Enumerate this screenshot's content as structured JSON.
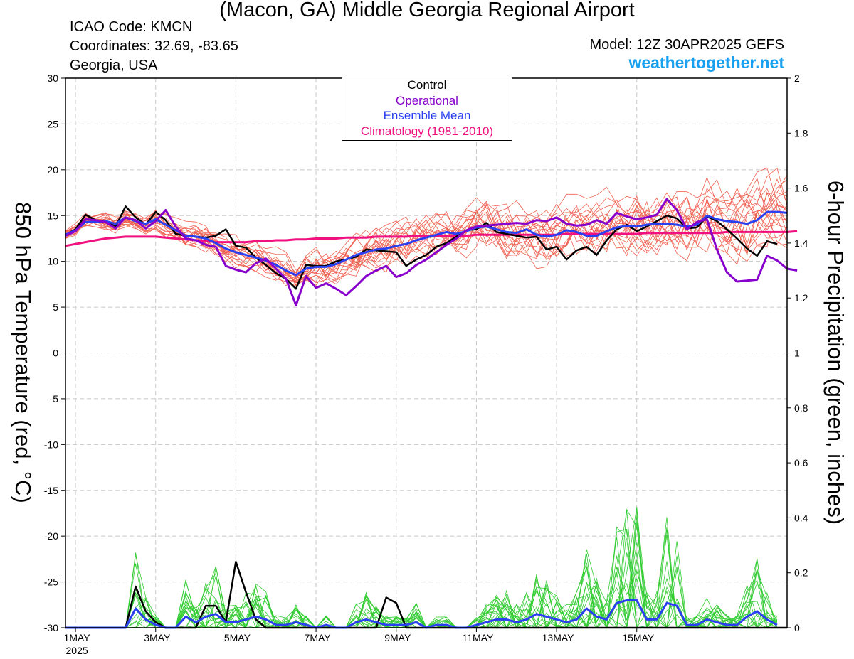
{
  "header": {
    "title": "(Macon, GA) Middle Georgia Regional Airport",
    "icao": "ICAO Code: KMCN",
    "coords": "Coordinates: 32.69, -83.65",
    "region": "Georgia, USA",
    "model": "Model: 12Z 30APR2025 GEFS",
    "brand": "weathertogether.net"
  },
  "legend": {
    "control": "Control",
    "operational": "Operational",
    "mean": "Ensemble Mean",
    "clim": "Climatology (1981-2010)"
  },
  "colors": {
    "control": "#000000",
    "operational": "#8800cc",
    "mean": "#2a3ff0",
    "clim": "#f01080",
    "member_temp": "#f06050",
    "member_precip": "#33cc33",
    "grid": "#c8c8c8",
    "brand": "#1aa0f0"
  },
  "chart_data": {
    "type": "line",
    "ylabel": "850 hPa Temperature (red, °C)",
    "y2label": "6-hour Precipitation (green, inches)",
    "ylim": [
      -30,
      30
    ],
    "y2lim": [
      0,
      2
    ],
    "yticks": [
      "30",
      "25",
      "20",
      "15",
      "10",
      "5",
      "0",
      "-5",
      "-10",
      "-15",
      "-20",
      "-25",
      "-30"
    ],
    "y2ticks": [
      "2",
      "1.8",
      "1.6",
      "1.4",
      "1.2",
      "1",
      "0.8",
      "0.6",
      "0.4",
      "0.2",
      "0"
    ],
    "x_start": "2025-04-30 18Z",
    "x_step_hours": 6,
    "xticks": [
      {
        "label": "1MAY",
        "sub": "2025",
        "t": 6
      },
      {
        "label": "3MAY",
        "sub": "",
        "t": 54
      },
      {
        "label": "5MAY",
        "sub": "",
        "t": 102
      },
      {
        "label": "7MAY",
        "sub": "",
        "t": 150
      },
      {
        "label": "9MAY",
        "sub": "",
        "t": 198
      },
      {
        "label": "11MAY",
        "sub": "",
        "t": 246
      },
      {
        "label": "13MAY",
        "sub": "",
        "t": 294
      },
      {
        "label": "15MAY",
        "sub": "",
        "t": 342
      }
    ],
    "grid": true,
    "temperature": {
      "control": [
        12.9,
        13.5,
        15.1,
        14.5,
        14.4,
        13.8,
        16.0,
        14.8,
        14.0,
        15.4,
        14.5,
        13.0,
        12.8,
        12.7,
        12.6,
        12.8,
        13.5,
        11.7,
        11.5,
        10.4,
        9.6,
        8.7,
        8.1,
        7.0,
        9.6,
        9.5,
        9.5,
        10.0,
        10.2,
        10.5,
        11.3,
        11.2,
        11.1,
        11.0,
        9.5,
        10.2,
        10.7,
        11.6,
        12.0,
        12.7,
        13.4,
        13.5,
        14.2,
        13.2,
        13.0,
        12.8,
        12.6,
        12.7,
        11.3,
        11.6,
        10.2,
        11.2,
        11.6,
        10.7,
        12.3,
        13.5,
        14.0,
        13.3,
        13.8,
        14.4,
        15.0,
        14.7,
        13.6,
        13.7,
        14.9,
        14.4,
        13.5,
        12.5,
        11.4,
        10.6,
        12.2,
        11.9
      ],
      "operational": [
        12.8,
        13.3,
        14.6,
        14.5,
        14.3,
        13.6,
        14.8,
        14.5,
        13.6,
        14.4,
        15.6,
        13.8,
        12.5,
        12.3,
        11.8,
        11.6,
        9.5,
        9.1,
        8.8,
        9.8,
        10.3,
        9.2,
        8.1,
        5.2,
        8.4,
        7.1,
        7.6,
        7.0,
        6.3,
        7.3,
        8.4,
        9.0,
        9.5,
        8.3,
        8.7,
        9.6,
        10.2,
        11.0,
        11.8,
        12.5,
        13.4,
        13.8,
        13.9,
        14.0,
        14.1,
        14.2,
        14.1,
        14.5,
        14.4,
        14.8,
        14.1,
        13.9,
        14.0,
        14.5,
        14.1,
        15.3,
        14.9,
        14.6,
        14.8,
        15.1,
        16.8,
        15.6,
        13.5,
        14.3,
        14.6,
        11.3,
        8.8,
        7.8,
        7.9,
        8.0,
        10.6,
        10.1,
        9.2,
        9.0
      ],
      "mean": [
        12.9,
        13.4,
        14.3,
        14.3,
        14.4,
        14.1,
        14.8,
        14.4,
        14.1,
        14.6,
        14.0,
        13.4,
        12.8,
        12.7,
        12.5,
        12.0,
        11.4,
        11.0,
        10.7,
        10.4,
        10.1,
        9.6,
        9.0,
        8.5,
        9.2,
        9.4,
        9.4,
        9.7,
        10.2,
        10.7,
        11.0,
        11.3,
        11.4,
        11.7,
        11.9,
        12.3,
        12.6,
        12.9,
        13.2,
        13.0,
        13.3,
        13.7,
        13.8,
        13.5,
        13.2,
        13.1,
        13.5,
        12.9,
        12.7,
        12.9,
        13.4,
        13.2,
        12.8,
        12.8,
        13.3,
        13.7,
        13.9,
        13.8,
        14.0,
        14.1,
        14.1,
        14.0,
        13.8,
        14.0,
        15.0,
        14.6,
        14.4,
        14.3,
        14.1,
        14.5,
        15.4,
        15.4,
        15.3
      ],
      "climatology": [
        11.7,
        11.9,
        12.1,
        12.3,
        12.5,
        12.6,
        12.7,
        12.7,
        12.7,
        12.7,
        12.6,
        12.5,
        12.4,
        12.3,
        12.2,
        12.1,
        12.1,
        12.1,
        12.1,
        12.2,
        12.2,
        12.3,
        12.3,
        12.4,
        12.4,
        12.5,
        12.5,
        12.5,
        12.6,
        12.6,
        12.6,
        12.7,
        12.7,
        12.7,
        12.7,
        12.8,
        12.8,
        12.8,
        12.8,
        12.8,
        12.8,
        12.9,
        12.9,
        12.9,
        12.9,
        12.9,
        12.9,
        12.9,
        12.9,
        12.9,
        13.0,
        13.0,
        13.0,
        13.0,
        13.0,
        13.0,
        13.0,
        13.0,
        13.1,
        13.1,
        13.1,
        13.1,
        13.1,
        13.1,
        13.1,
        13.1,
        13.2,
        13.2,
        13.2,
        13.2,
        13.2,
        13.2,
        13.2,
        13.3
      ]
    },
    "precipitation": {
      "control": [
        0,
        0,
        0,
        0,
        0,
        0,
        0,
        0.15,
        0.06,
        0.02,
        0,
        0,
        0,
        0,
        0.08,
        0.08,
        0.02,
        0.24,
        0.13,
        0.03,
        0,
        0,
        0,
        0,
        0,
        0,
        0,
        0,
        0,
        0,
        0,
        0,
        0.11,
        0.09,
        0,
        0,
        0,
        0,
        0,
        0,
        0,
        0,
        0,
        0,
        0,
        0,
        0,
        0,
        0,
        0,
        0,
        0,
        0,
        0,
        0,
        0,
        0,
        0,
        0,
        0,
        0,
        0,
        0,
        0,
        0,
        0,
        0,
        0,
        0,
        0,
        0,
        0,
        0
      ],
      "mean": [
        0,
        0,
        0,
        0,
        0,
        0,
        0,
        0.07,
        0.03,
        0.01,
        0,
        0,
        0.04,
        0.02,
        0.04,
        0.05,
        0.02,
        0.02,
        0.03,
        0.04,
        0.03,
        0.01,
        0.01,
        0.02,
        0.01,
        0,
        0.01,
        0,
        0,
        0.02,
        0.03,
        0.02,
        0.01,
        0.01,
        0.01,
        0.02,
        0,
        0.01,
        0.01,
        0,
        0,
        0.01,
        0.02,
        0.03,
        0.03,
        0.02,
        0.03,
        0.05,
        0.04,
        0.03,
        0.02,
        0.03,
        0.07,
        0.04,
        0.03,
        0.09,
        0.1,
        0.1,
        0.03,
        0.03,
        0.09,
        0.08,
        0.01,
        0.01,
        0.03,
        0.02,
        0.01,
        0.01,
        0.04,
        0.06,
        0.03,
        0.01
      ]
    }
  }
}
